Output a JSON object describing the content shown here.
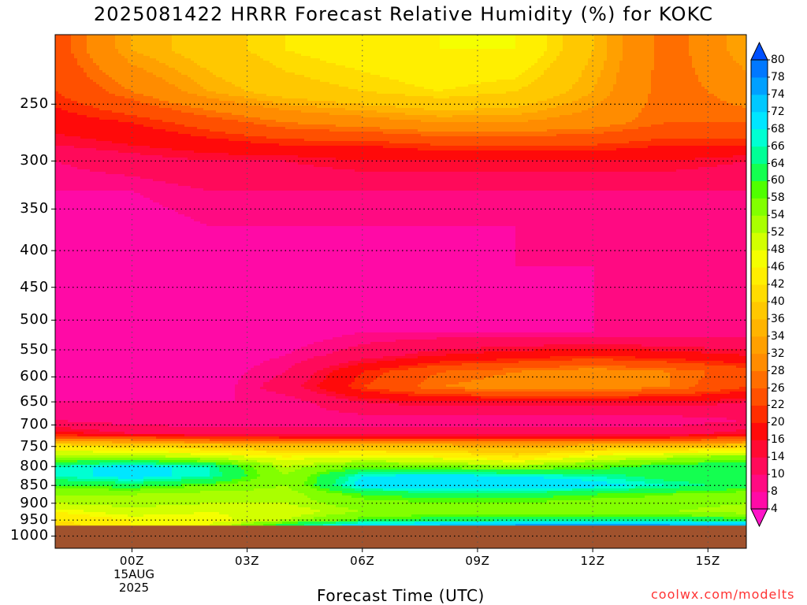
{
  "title": "2025081422 HRRR Forecast Relative Humidity (%) for KOKC",
  "xlabel": "Forecast Time (UTC)",
  "credit": "coolwx.com/modelts",
  "date_lines": [
    "15AUG",
    "2025"
  ],
  "chart_data": {
    "type": "heatmap",
    "title": "2025081422 HRRR Forecast Relative Humidity (%) for KOKC",
    "xlabel": "Forecast Time (UTC)",
    "ylabel": "",
    "x_hours": [
      -2,
      0,
      2,
      4,
      6,
      8,
      10,
      12,
      14,
      16
    ],
    "x_tick_values": [
      0,
      3,
      6,
      9,
      12,
      15
    ],
    "x_tick_labels": [
      "00Z",
      "03Z",
      "06Z",
      "09Z",
      "12Z",
      "15Z"
    ],
    "xlim": [
      -2,
      16
    ],
    "y_ticks": [
      250,
      300,
      350,
      400,
      450,
      500,
      550,
      600,
      650,
      700,
      750,
      800,
      850,
      900,
      950,
      1000
    ],
    "ylim_hpa": [
      200,
      1040
    ],
    "y_scale": "log",
    "grid": true,
    "surface_hpa": 967,
    "levels_hpa": [
      210,
      240,
      265,
      285,
      300,
      330,
      370,
      420,
      470,
      520,
      560,
      590,
      620,
      650,
      690,
      720,
      745,
      775,
      800,
      825,
      850,
      875,
      900,
      925,
      950,
      962
    ],
    "values": [
      [
        24,
        34,
        38,
        42,
        44,
        46,
        46,
        36,
        26,
        34
      ],
      [
        22,
        28,
        34,
        38,
        40,
        42,
        40,
        34,
        26,
        30
      ],
      [
        18,
        20,
        24,
        28,
        30,
        32,
        32,
        30,
        26,
        26
      ],
      [
        14,
        16,
        18,
        20,
        20,
        22,
        22,
        22,
        20,
        20
      ],
      [
        10,
        12,
        14,
        14,
        16,
        16,
        16,
        16,
        16,
        14
      ],
      [
        8,
        8,
        10,
        10,
        10,
        10,
        10,
        10,
        10,
        10
      ],
      [
        8,
        6,
        8,
        8,
        8,
        8,
        8,
        8,
        8,
        8
      ],
      [
        8,
        6,
        6,
        6,
        6,
        6,
        8,
        8,
        8,
        8
      ],
      [
        8,
        6,
        6,
        6,
        4,
        6,
        6,
        8,
        8,
        8
      ],
      [
        6,
        6,
        6,
        6,
        8,
        8,
        8,
        8,
        8,
        8
      ],
      [
        6,
        6,
        6,
        8,
        12,
        16,
        18,
        20,
        18,
        16
      ],
      [
        6,
        6,
        6,
        10,
        20,
        26,
        28,
        30,
        28,
        24
      ],
      [
        6,
        6,
        6,
        12,
        22,
        28,
        30,
        30,
        28,
        22
      ],
      [
        8,
        8,
        8,
        8,
        14,
        16,
        16,
        16,
        16,
        14
      ],
      [
        10,
        8,
        8,
        8,
        8,
        8,
        8,
        8,
        8,
        10
      ],
      [
        18,
        14,
        12,
        12,
        12,
        12,
        12,
        12,
        12,
        16
      ],
      [
        40,
        38,
        36,
        34,
        34,
        34,
        32,
        34,
        34,
        36
      ],
      [
        54,
        54,
        50,
        46,
        48,
        46,
        42,
        48,
        52,
        56
      ],
      [
        66,
        70,
        66,
        52,
        58,
        56,
        54,
        58,
        62,
        64
      ],
      [
        66,
        70,
        66,
        54,
        68,
        70,
        68,
        66,
        62,
        62
      ],
      [
        60,
        62,
        58,
        54,
        70,
        72,
        72,
        70,
        66,
        62
      ],
      [
        54,
        54,
        52,
        52,
        60,
        62,
        62,
        60,
        58,
        56
      ],
      [
        52,
        54,
        52,
        52,
        56,
        58,
        58,
        56,
        56,
        54
      ],
      [
        46,
        50,
        48,
        50,
        54,
        56,
        56,
        54,
        54,
        52
      ],
      [
        42,
        46,
        46,
        52,
        60,
        62,
        64,
        64,
        64,
        62
      ],
      [
        40,
        46,
        48,
        62,
        70,
        72,
        74,
        74,
        74,
        72
      ]
    ],
    "colorbar": {
      "labels": [
        4,
        8,
        10,
        14,
        16,
        20,
        22,
        26,
        28,
        32,
        34,
        36,
        40,
        42,
        46,
        48,
        52,
        54,
        58,
        60,
        64,
        66,
        68,
        72,
        74,
        78,
        80
      ],
      "colors": [
        "#ff14c8",
        "#ff0aa6",
        "#ff0a82",
        "#ff0a5a",
        "#ff0a32",
        "#ff0a0a",
        "#ff2d00",
        "#ff5000",
        "#ff6e00",
        "#ff8c00",
        "#ffa000",
        "#ffb400",
        "#ffc800",
        "#ffdc00",
        "#ffef00",
        "#f5ff00",
        "#d2ff00",
        "#aaff00",
        "#82ff00",
        "#50ff00",
        "#14ff50",
        "#00ff96",
        "#00ffd2",
        "#00e6ff",
        "#00c8ff",
        "#00a0ff",
        "#0078ff",
        "#0050ff"
      ]
    }
  }
}
